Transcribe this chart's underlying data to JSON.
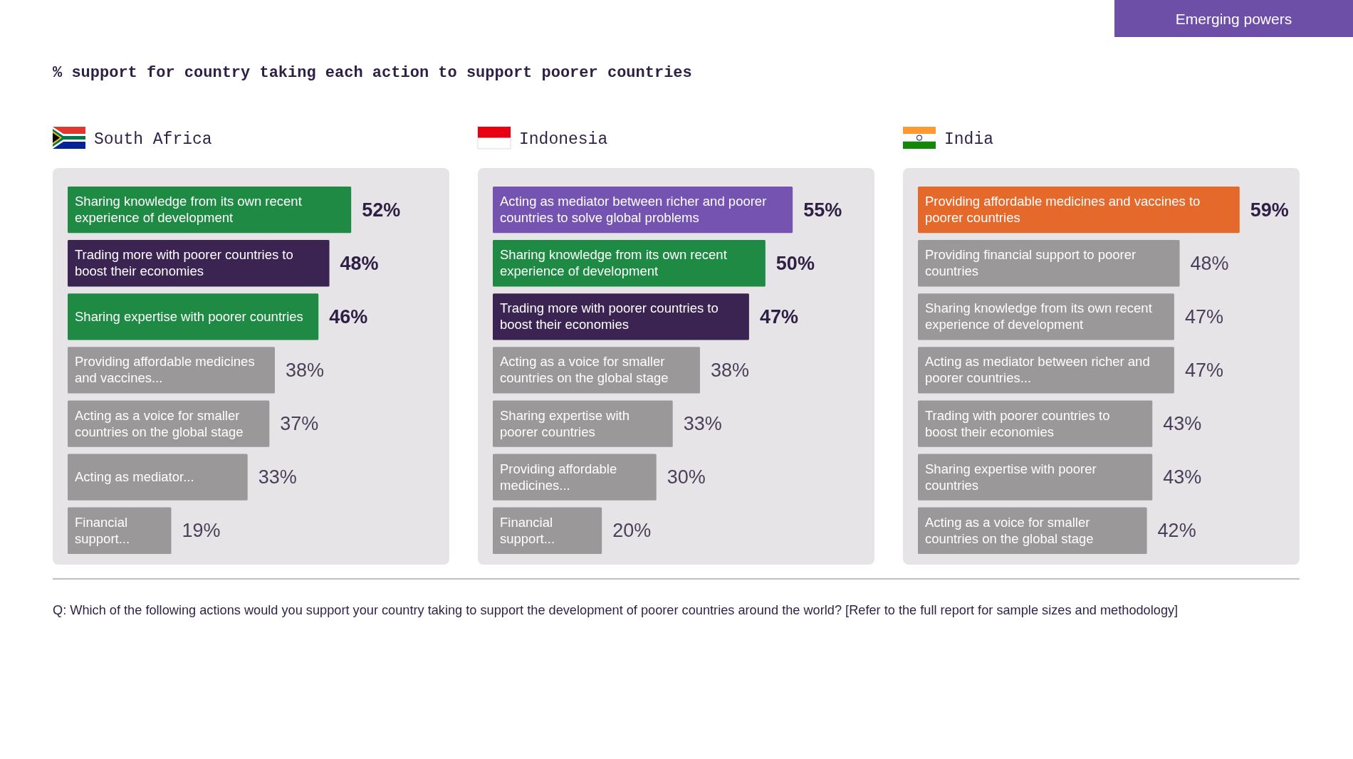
{
  "chart_data": [
    {
      "type": "bar",
      "orientation": "horizontal",
      "title": "South Africa",
      "annotations": [
        "Emerging powers",
        "% support for country taking each action to support poorer countries",
        "Q: Which of the following actions would you support your country taking to support the development of poorer countries around the world? [Refer to the full report for sample sizes and methodology]"
      ],
      "categories": [
        "Sharing knowledge from its own recent experience of development",
        "Trading more with poorer countries to boost their economies",
        "Sharing expertise with poorer countries",
        "Providing affordable medicines and vaccines...",
        "Acting as a voice for smaller countries on the global stage",
        "Acting as mediator...",
        "Financial support..."
      ],
      "values": [
        52,
        48,
        46,
        38,
        37,
        33,
        19
      ],
      "value_labels": [
        "52%",
        "48%",
        "46%",
        "38%",
        "37%",
        "33%",
        "19%"
      ],
      "colors": [
        "#1e8a44",
        "#3b2352",
        "#1e8a44",
        "#9a9899",
        "#9a9899",
        "#9a9899",
        "#9a9899"
      ],
      "xlim": [
        0,
        70
      ],
      "tick_labels": false,
      "grid": false
    },
    {
      "type": "bar",
      "orientation": "horizontal",
      "title": "Indonesia",
      "categories": [
        "Acting as mediator between richer and poorer countries to solve global problems",
        "Sharing knowledge from its own recent experience of development",
        "Trading more with poorer countries to boost their economies",
        "Acting as a voice for smaller countries on the global stage",
        "Sharing expertise with poorer countries",
        "Providing affordable medicines...",
        "Financial support..."
      ],
      "values": [
        55,
        50,
        47,
        38,
        33,
        30,
        20
      ],
      "value_labels": [
        "55%",
        "50%",
        "47%",
        "38%",
        "33%",
        "30%",
        "20%"
      ],
      "colors": [
        "#7553b0",
        "#1e8a44",
        "#3b2352",
        "#9a9899",
        "#9a9899",
        "#9a9899",
        "#9a9899"
      ],
      "xlim": [
        0,
        70
      ],
      "tick_labels": false,
      "grid": false
    },
    {
      "type": "bar",
      "orientation": "horizontal",
      "title": "India",
      "categories": [
        "Providing affordable medicines and vaccines to poorer countries",
        "Providing financial support to poorer countries",
        "Sharing knowledge from its own recent experience of development",
        "Acting as mediator between richer and poorer countries...",
        "Trading with poorer countries to boost their economies",
        "Sharing expertise with poorer countries",
        "Acting as a voice for smaller countries on the global stage"
      ],
      "values": [
        59,
        48,
        47,
        47,
        43,
        43,
        42
      ],
      "value_labels": [
        "59%",
        "48%",
        "47%",
        "47%",
        "43%",
        "43%",
        "42%"
      ],
      "colors": [
        "#e4692a",
        "#9a9899",
        "#9a9899",
        "#9a9899",
        "#9a9899",
        "#9a9899",
        "#9a9899"
      ],
      "xlim": [
        0,
        70
      ],
      "tick_labels": false,
      "grid": false
    }
  ]
}
